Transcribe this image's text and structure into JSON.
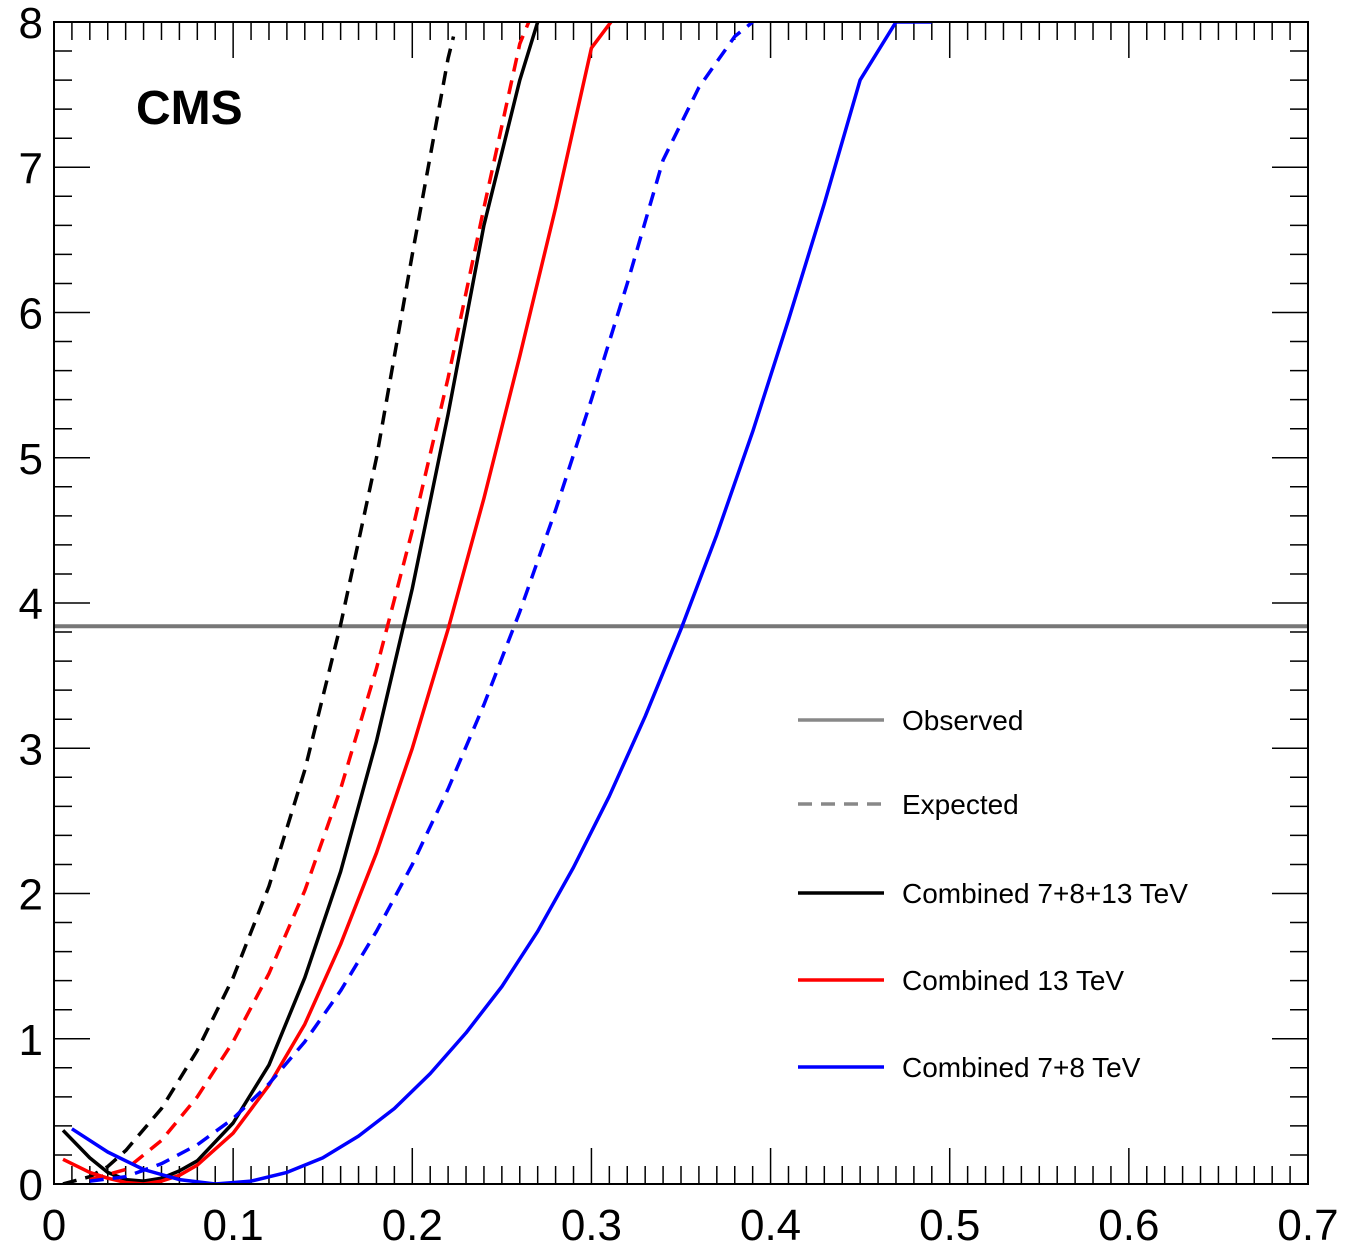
{
  "chart_data": {
    "type": "line",
    "brand_label": "CMS",
    "xlim": [
      0,
      0.7
    ],
    "ylim": [
      0,
      8
    ],
    "x_ticks": [
      "0",
      "0.1",
      "0.2",
      "0.3",
      "0.4",
      "0.5",
      "0.6",
      "0.7"
    ],
    "y_ticks": [
      "0",
      "1",
      "2",
      "3",
      "4",
      "5",
      "6",
      "7",
      "8"
    ],
    "grid": false,
    "legend_position": "bottom-right",
    "legend": [
      {
        "label": "Observed",
        "color": "#888888",
        "style": "solid"
      },
      {
        "label": "Expected",
        "color": "#888888",
        "style": "dashed"
      },
      {
        "label": "Combined 7+8+13 TeV",
        "color": "#000000",
        "style": "solid"
      },
      {
        "label": "Combined 13 TeV",
        "color": "#ff0000",
        "style": "solid"
      },
      {
        "label": "Combined 7+8 TeV",
        "color": "#0000ff",
        "style": "solid"
      }
    ],
    "reference_line": {
      "y": 3.84,
      "color": "#777777"
    },
    "series": [
      {
        "color": "#000000",
        "style": "solid",
        "x": [
          0.005,
          0.02,
          0.03,
          0.04,
          0.05,
          0.06,
          0.07,
          0.08,
          0.1,
          0.12,
          0.14,
          0.16,
          0.18,
          0.2,
          0.22,
          0.24,
          0.26,
          0.27,
          0.28
        ],
        "y": [
          0.37,
          0.18,
          0.08,
          0.03,
          0.02,
          0.04,
          0.09,
          0.16,
          0.42,
          0.82,
          1.42,
          2.15,
          3.05,
          4.1,
          5.3,
          6.6,
          7.6,
          8.0,
          8.15
        ]
      },
      {
        "color": "#000000",
        "style": "dashed",
        "x": [
          0.005,
          0.02,
          0.03,
          0.04,
          0.06,
          0.08,
          0.1,
          0.12,
          0.14,
          0.16,
          0.18,
          0.2,
          0.22,
          0.223
        ],
        "y": [
          0.0,
          0.05,
          0.12,
          0.23,
          0.52,
          0.92,
          1.42,
          2.05,
          2.85,
          3.85,
          5.0,
          6.4,
          7.75,
          7.9
        ]
      },
      {
        "color": "#ff0000",
        "style": "solid",
        "x": [
          0.005,
          0.02,
          0.03,
          0.04,
          0.05,
          0.06,
          0.07,
          0.08,
          0.1,
          0.12,
          0.14,
          0.16,
          0.18,
          0.2,
          0.22,
          0.24,
          0.26,
          0.28,
          0.3,
          0.32
        ],
        "y": [
          0.17,
          0.08,
          0.04,
          0.01,
          0.0,
          0.02,
          0.06,
          0.13,
          0.35,
          0.68,
          1.1,
          1.65,
          2.28,
          3.0,
          3.82,
          4.72,
          5.7,
          6.72,
          7.82,
          8.15
        ]
      },
      {
        "color": "#ff0000",
        "style": "dashed",
        "x": [
          0.02,
          0.04,
          0.06,
          0.08,
          0.1,
          0.12,
          0.14,
          0.16,
          0.18,
          0.2,
          0.22,
          0.24,
          0.26,
          0.27
        ],
        "y": [
          0.03,
          0.1,
          0.3,
          0.6,
          0.98,
          1.45,
          2.02,
          2.72,
          3.55,
          4.5,
          5.55,
          6.72,
          7.85,
          8.15
        ]
      },
      {
        "color": "#0000ff",
        "style": "solid",
        "x": [
          0.01,
          0.03,
          0.05,
          0.07,
          0.09,
          0.11,
          0.13,
          0.15,
          0.17,
          0.19,
          0.21,
          0.23,
          0.25,
          0.27,
          0.29,
          0.31,
          0.33,
          0.35,
          0.37,
          0.39,
          0.41,
          0.43,
          0.45,
          0.47,
          0.49
        ],
        "y": [
          0.38,
          0.22,
          0.1,
          0.03,
          0.0,
          0.02,
          0.08,
          0.18,
          0.33,
          0.52,
          0.76,
          1.04,
          1.36,
          1.74,
          2.18,
          2.67,
          3.22,
          3.82,
          4.47,
          5.18,
          5.95,
          6.75,
          7.6,
          8.0,
          8.0
        ]
      },
      {
        "color": "#0000ff",
        "style": "dashed",
        "x": [
          0.02,
          0.04,
          0.06,
          0.08,
          0.1,
          0.12,
          0.14,
          0.16,
          0.18,
          0.2,
          0.22,
          0.24,
          0.26,
          0.28,
          0.3,
          0.32,
          0.34,
          0.36,
          0.38,
          0.39
        ],
        "y": [
          0.02,
          0.05,
          0.14,
          0.27,
          0.45,
          0.69,
          0.98,
          1.33,
          1.74,
          2.2,
          2.72,
          3.3,
          3.94,
          4.64,
          5.4,
          6.2,
          7.05,
          7.55,
          7.9,
          8.0
        ]
      }
    ]
  }
}
